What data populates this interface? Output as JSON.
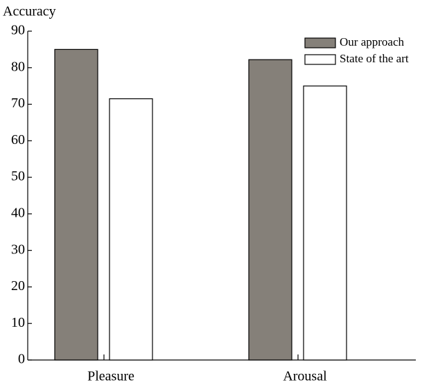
{
  "chart_data": {
    "type": "bar",
    "y_label": "Accuracy",
    "categories": [
      "Pleasure",
      "Arousal"
    ],
    "series": [
      {
        "name": "Our approach",
        "color": "#858079",
        "values": [
          85,
          82.2
        ]
      },
      {
        "name": "State of the art",
        "color": "#ffffff",
        "values": [
          71.5,
          75
        ]
      }
    ],
    "ylim": [
      0,
      90
    ],
    "yticks": [
      0,
      10,
      20,
      30,
      40,
      50,
      60,
      70,
      80,
      90
    ],
    "legend": "upper right",
    "grid": false
  }
}
